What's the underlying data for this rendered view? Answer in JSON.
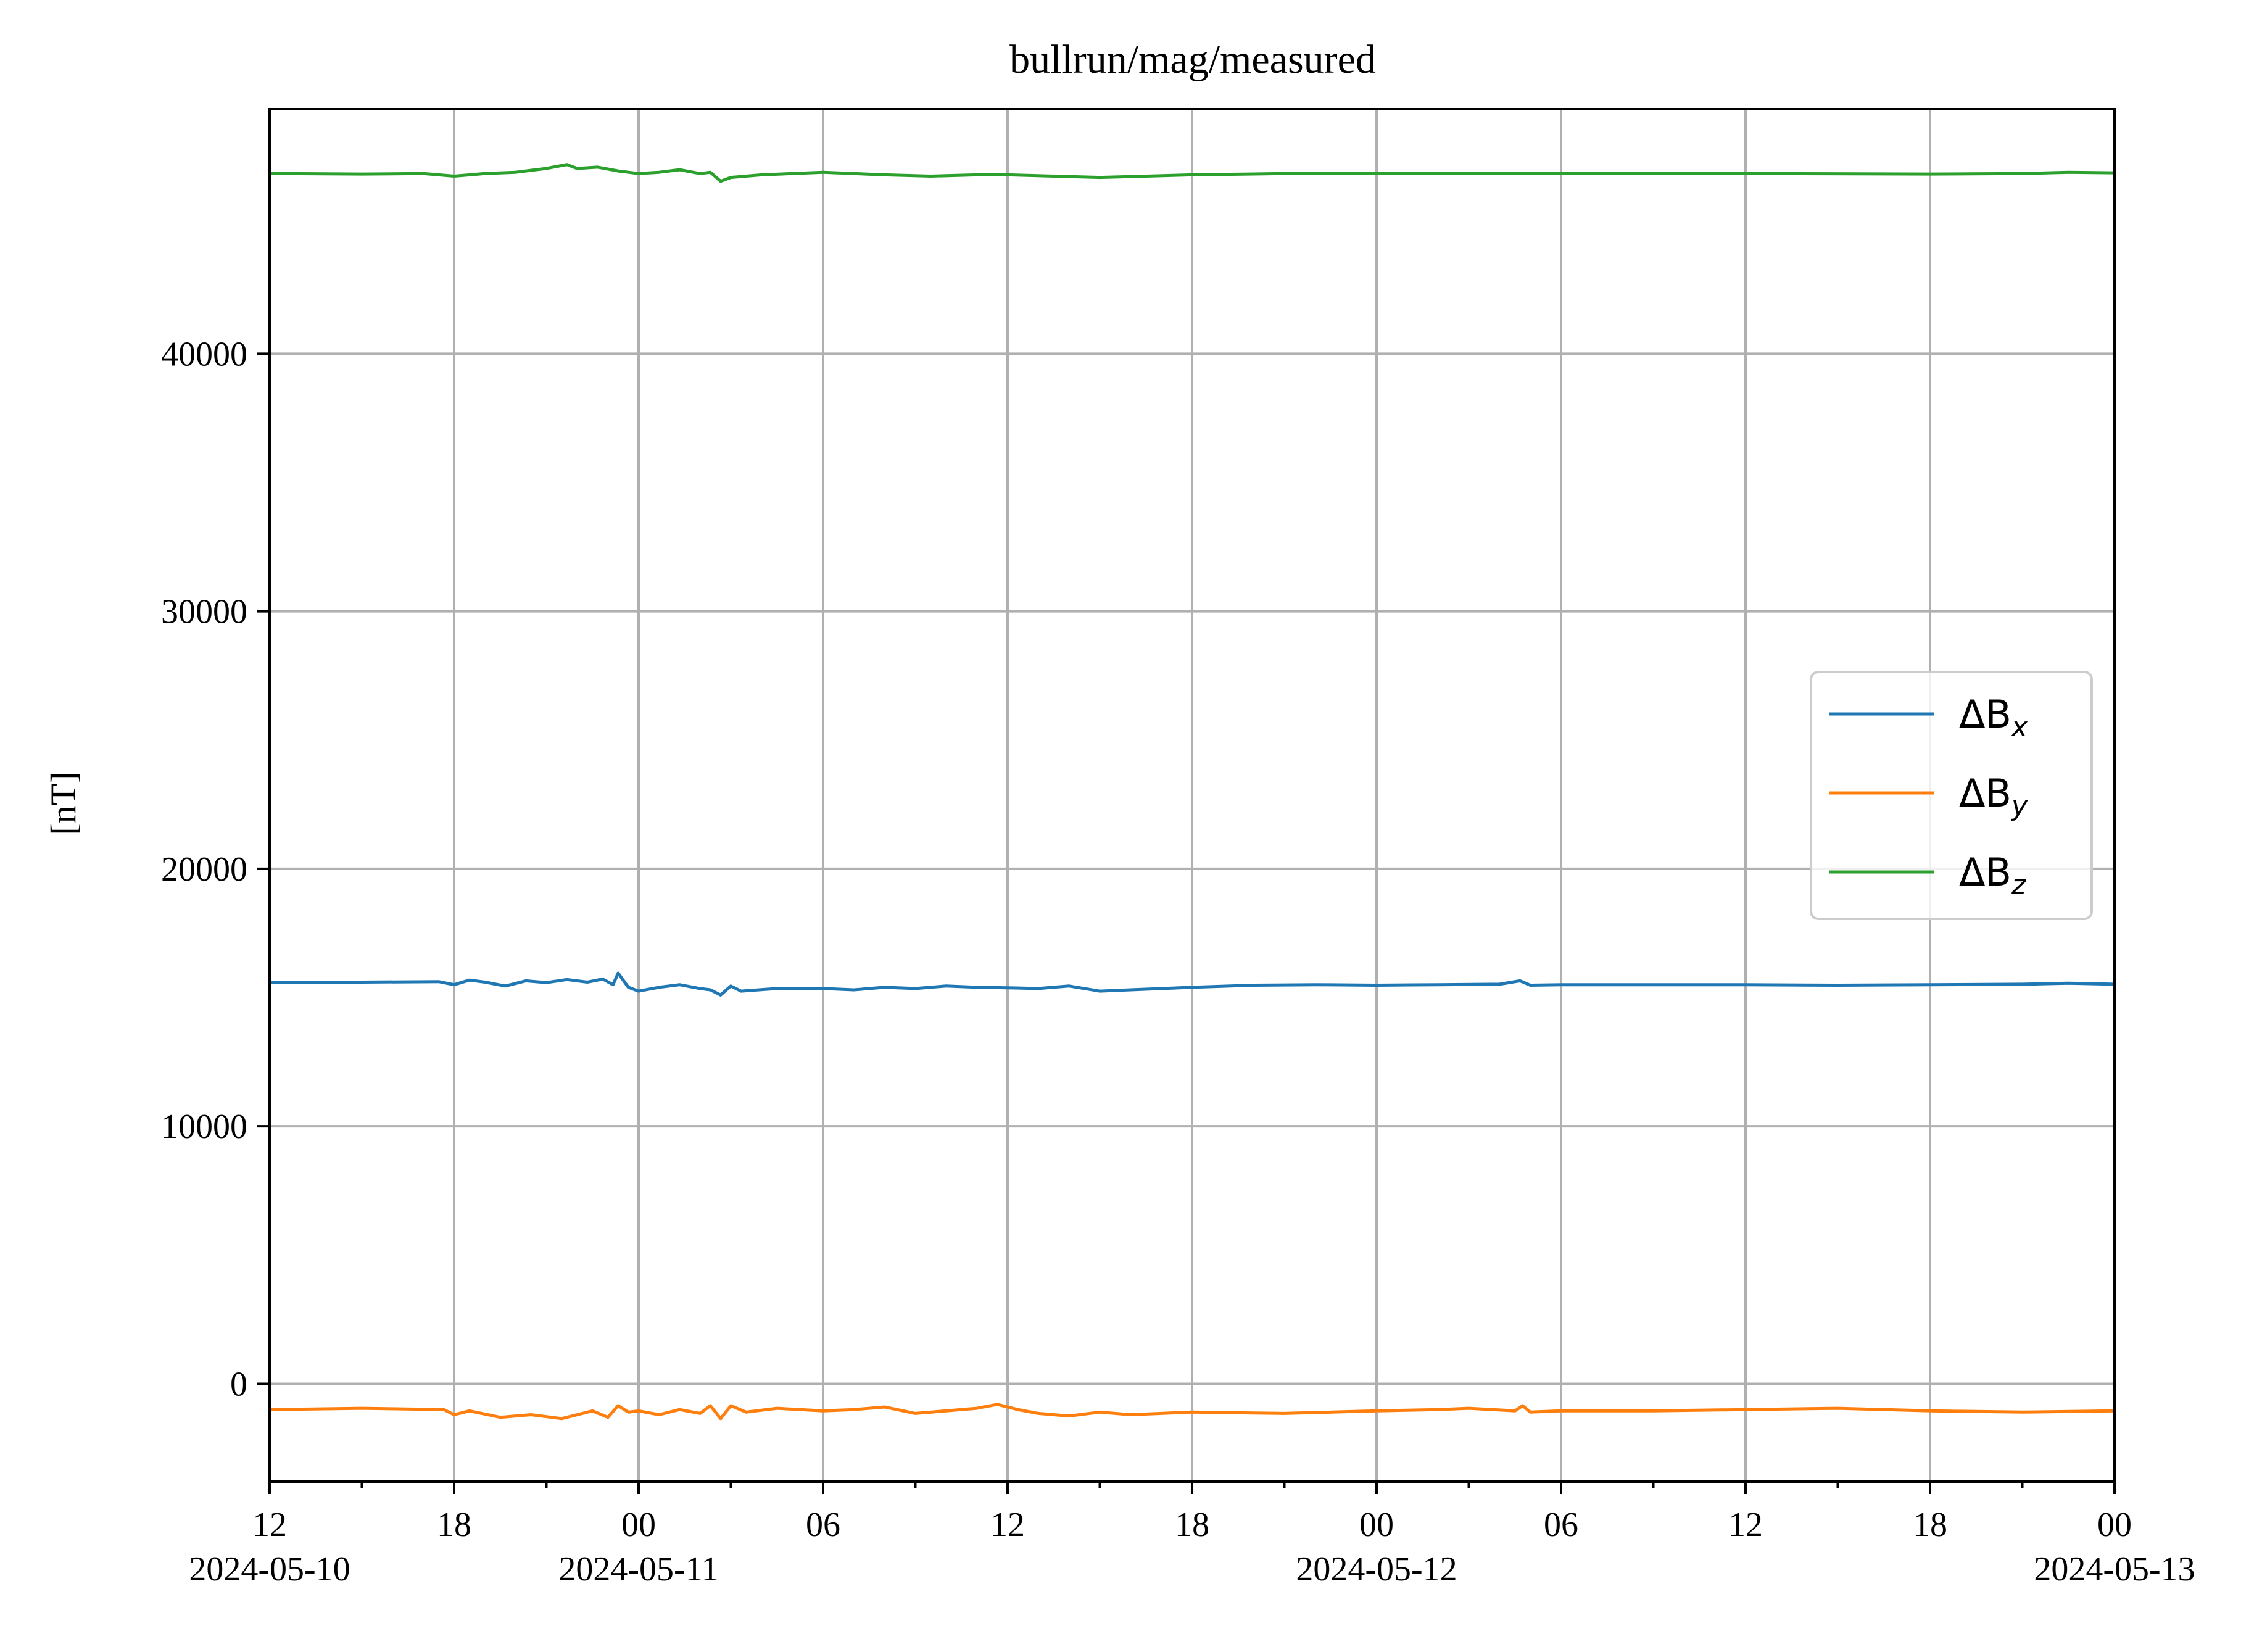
{
  "chart_data": {
    "type": "line",
    "title": "bullrun/mag/measured",
    "xlabel": "",
    "ylabel": "[nT]",
    "x_range": [
      "2024-05-10T12:00",
      "2024-05-13T00:00"
    ],
    "ylim": [
      -3800,
      49500
    ],
    "grid": true,
    "legend_position": "center-right",
    "x_ticks": [
      {
        "t": "2024-05-10T12:00",
        "label": "12",
        "date": "2024-05-10"
      },
      {
        "t": "2024-05-10T18:00",
        "label": "18",
        "date": ""
      },
      {
        "t": "2024-05-11T00:00",
        "label": "00",
        "date": "2024-05-11"
      },
      {
        "t": "2024-05-11T06:00",
        "label": "06",
        "date": ""
      },
      {
        "t": "2024-05-11T12:00",
        "label": "12",
        "date": ""
      },
      {
        "t": "2024-05-11T18:00",
        "label": "18",
        "date": ""
      },
      {
        "t": "2024-05-12T00:00",
        "label": "00",
        "date": "2024-05-12"
      },
      {
        "t": "2024-05-12T06:00",
        "label": "06",
        "date": ""
      },
      {
        "t": "2024-05-12T12:00",
        "label": "12",
        "date": ""
      },
      {
        "t": "2024-05-12T18:00",
        "label": "18",
        "date": ""
      },
      {
        "t": "2024-05-13T00:00",
        "label": "00",
        "date": "2024-05-13"
      }
    ],
    "y_ticks": [
      {
        "value": 0,
        "label": "0"
      },
      {
        "value": 10000,
        "label": "10000"
      },
      {
        "value": 20000,
        "label": "20000"
      },
      {
        "value": 30000,
        "label": "30000"
      },
      {
        "value": 40000,
        "label": "40000"
      }
    ],
    "series": [
      {
        "name": "ΔBx",
        "name_base": "ΔB",
        "name_sub": "x",
        "color": "#1f77b4",
        "points": [
          [
            "2024-05-10T12:00",
            15600
          ],
          [
            "2024-05-10T15:00",
            15600
          ],
          [
            "2024-05-10T17:30",
            15620
          ],
          [
            "2024-05-10T18:00",
            15500
          ],
          [
            "2024-05-10T18:30",
            15680
          ],
          [
            "2024-05-10T19:00",
            15600
          ],
          [
            "2024-05-10T19:40",
            15450
          ],
          [
            "2024-05-10T20:20",
            15650
          ],
          [
            "2024-05-10T21:00",
            15580
          ],
          [
            "2024-05-10T21:40",
            15700
          ],
          [
            "2024-05-10T22:20",
            15600
          ],
          [
            "2024-05-10T22:50",
            15720
          ],
          [
            "2024-05-10T23:10",
            15500
          ],
          [
            "2024-05-10T23:20",
            15950
          ],
          [
            "2024-05-10T23:40",
            15400
          ],
          [
            "2024-05-11T00:00",
            15250
          ],
          [
            "2024-05-11T00:40",
            15400
          ],
          [
            "2024-05-11T01:20",
            15500
          ],
          [
            "2024-05-11T02:00",
            15350
          ],
          [
            "2024-05-11T02:20",
            15300
          ],
          [
            "2024-05-11T02:40",
            15100
          ],
          [
            "2024-05-11T03:00",
            15450
          ],
          [
            "2024-05-11T03:20",
            15250
          ],
          [
            "2024-05-11T04:30",
            15350
          ],
          [
            "2024-05-11T06:00",
            15350
          ],
          [
            "2024-05-11T07:00",
            15300
          ],
          [
            "2024-05-11T08:00",
            15400
          ],
          [
            "2024-05-11T09:00",
            15350
          ],
          [
            "2024-05-11T10:00",
            15450
          ],
          [
            "2024-05-11T11:00",
            15400
          ],
          [
            "2024-05-11T12:00",
            15380
          ],
          [
            "2024-05-11T13:00",
            15350
          ],
          [
            "2024-05-11T14:00",
            15450
          ],
          [
            "2024-05-11T15:00",
            15250
          ],
          [
            "2024-05-11T16:00",
            15300
          ],
          [
            "2024-05-11T18:00",
            15400
          ],
          [
            "2024-05-11T20:00",
            15480
          ],
          [
            "2024-05-11T22:00",
            15500
          ],
          [
            "2024-05-12T00:00",
            15480
          ],
          [
            "2024-05-12T02:00",
            15500
          ],
          [
            "2024-05-12T04:00",
            15520
          ],
          [
            "2024-05-12T04:40",
            15650
          ],
          [
            "2024-05-12T05:00",
            15480
          ],
          [
            "2024-05-12T06:00",
            15500
          ],
          [
            "2024-05-12T09:00",
            15500
          ],
          [
            "2024-05-12T12:00",
            15500
          ],
          [
            "2024-05-12T15:00",
            15480
          ],
          [
            "2024-05-12T18:00",
            15500
          ],
          [
            "2024-05-12T21:00",
            15520
          ],
          [
            "2024-05-12T22:30",
            15560
          ],
          [
            "2024-05-13T00:00",
            15520
          ]
        ]
      },
      {
        "name": "ΔBy",
        "name_base": "ΔB",
        "name_sub": "y",
        "color": "#ff7f0e",
        "points": [
          [
            "2024-05-10T12:00",
            -1000
          ],
          [
            "2024-05-10T15:00",
            -950
          ],
          [
            "2024-05-10T17:40",
            -1000
          ],
          [
            "2024-05-10T18:00",
            -1200
          ],
          [
            "2024-05-10T18:30",
            -1050
          ],
          [
            "2024-05-10T19:30",
            -1300
          ],
          [
            "2024-05-10T20:30",
            -1200
          ],
          [
            "2024-05-10T21:30",
            -1350
          ],
          [
            "2024-05-10T22:30",
            -1050
          ],
          [
            "2024-05-10T23:00",
            -1300
          ],
          [
            "2024-05-10T23:20",
            -850
          ],
          [
            "2024-05-10T23:40",
            -1100
          ],
          [
            "2024-05-11T00:00",
            -1050
          ],
          [
            "2024-05-11T00:40",
            -1200
          ],
          [
            "2024-05-11T01:20",
            -1000
          ],
          [
            "2024-05-11T02:00",
            -1150
          ],
          [
            "2024-05-11T02:20",
            -850
          ],
          [
            "2024-05-11T02:40",
            -1350
          ],
          [
            "2024-05-11T03:00",
            -850
          ],
          [
            "2024-05-11T03:30",
            -1100
          ],
          [
            "2024-05-11T04:30",
            -950
          ],
          [
            "2024-05-11T06:00",
            -1050
          ],
          [
            "2024-05-11T07:00",
            -1000
          ],
          [
            "2024-05-11T08:00",
            -900
          ],
          [
            "2024-05-11T09:00",
            -1150
          ],
          [
            "2024-05-11T10:00",
            -1050
          ],
          [
            "2024-05-11T11:00",
            -950
          ],
          [
            "2024-05-11T11:40",
            -800
          ],
          [
            "2024-05-11T12:20",
            -1000
          ],
          [
            "2024-05-11T13:00",
            -1150
          ],
          [
            "2024-05-11T14:00",
            -1250
          ],
          [
            "2024-05-11T15:00",
            -1100
          ],
          [
            "2024-05-11T16:00",
            -1200
          ],
          [
            "2024-05-11T18:00",
            -1100
          ],
          [
            "2024-05-11T21:00",
            -1150
          ],
          [
            "2024-05-12T00:00",
            -1050
          ],
          [
            "2024-05-12T02:00",
            -1000
          ],
          [
            "2024-05-12T03:00",
            -950
          ],
          [
            "2024-05-12T04:30",
            -1050
          ],
          [
            "2024-05-12T04:45",
            -850
          ],
          [
            "2024-05-12T05:00",
            -1100
          ],
          [
            "2024-05-12T06:00",
            -1050
          ],
          [
            "2024-05-12T09:00",
            -1050
          ],
          [
            "2024-05-12T12:00",
            -1000
          ],
          [
            "2024-05-12T15:00",
            -950
          ],
          [
            "2024-05-12T18:00",
            -1050
          ],
          [
            "2024-05-12T21:00",
            -1100
          ],
          [
            "2024-05-13T00:00",
            -1050
          ]
        ]
      },
      {
        "name": "ΔBz",
        "name_base": "ΔB",
        "name_sub": "z",
        "color": "#2ca02c",
        "points": [
          [
            "2024-05-10T12:00",
            47000
          ],
          [
            "2024-05-10T15:00",
            46980
          ],
          [
            "2024-05-10T17:00",
            47000
          ],
          [
            "2024-05-10T18:00",
            46900
          ],
          [
            "2024-05-10T19:00",
            47000
          ],
          [
            "2024-05-10T20:00",
            47050
          ],
          [
            "2024-05-10T21:00",
            47200
          ],
          [
            "2024-05-10T21:40",
            47350
          ],
          [
            "2024-05-10T22:00",
            47200
          ],
          [
            "2024-05-10T22:40",
            47250
          ],
          [
            "2024-05-10T23:20",
            47100
          ],
          [
            "2024-05-11T00:00",
            47000
          ],
          [
            "2024-05-11T00:40",
            47050
          ],
          [
            "2024-05-11T01:20",
            47150
          ],
          [
            "2024-05-11T02:00",
            47000
          ],
          [
            "2024-05-11T02:20",
            47050
          ],
          [
            "2024-05-11T02:40",
            46700
          ],
          [
            "2024-05-11T03:00",
            46850
          ],
          [
            "2024-05-11T04:00",
            46950
          ],
          [
            "2024-05-11T06:00",
            47050
          ],
          [
            "2024-05-11T08:00",
            46950
          ],
          [
            "2024-05-11T09:30",
            46900
          ],
          [
            "2024-05-11T11:00",
            46950
          ],
          [
            "2024-05-11T12:00",
            46950
          ],
          [
            "2024-05-11T13:30",
            46900
          ],
          [
            "2024-05-11T15:00",
            46850
          ],
          [
            "2024-05-11T18:00",
            46950
          ],
          [
            "2024-05-11T21:00",
            47000
          ],
          [
            "2024-05-12T00:00",
            47000
          ],
          [
            "2024-05-12T06:00",
            47000
          ],
          [
            "2024-05-12T12:00",
            47000
          ],
          [
            "2024-05-12T18:00",
            46980
          ],
          [
            "2024-05-12T21:00",
            47000
          ],
          [
            "2024-05-12T22:30",
            47050
          ],
          [
            "2024-05-13T00:00",
            47030
          ]
        ]
      }
    ]
  }
}
